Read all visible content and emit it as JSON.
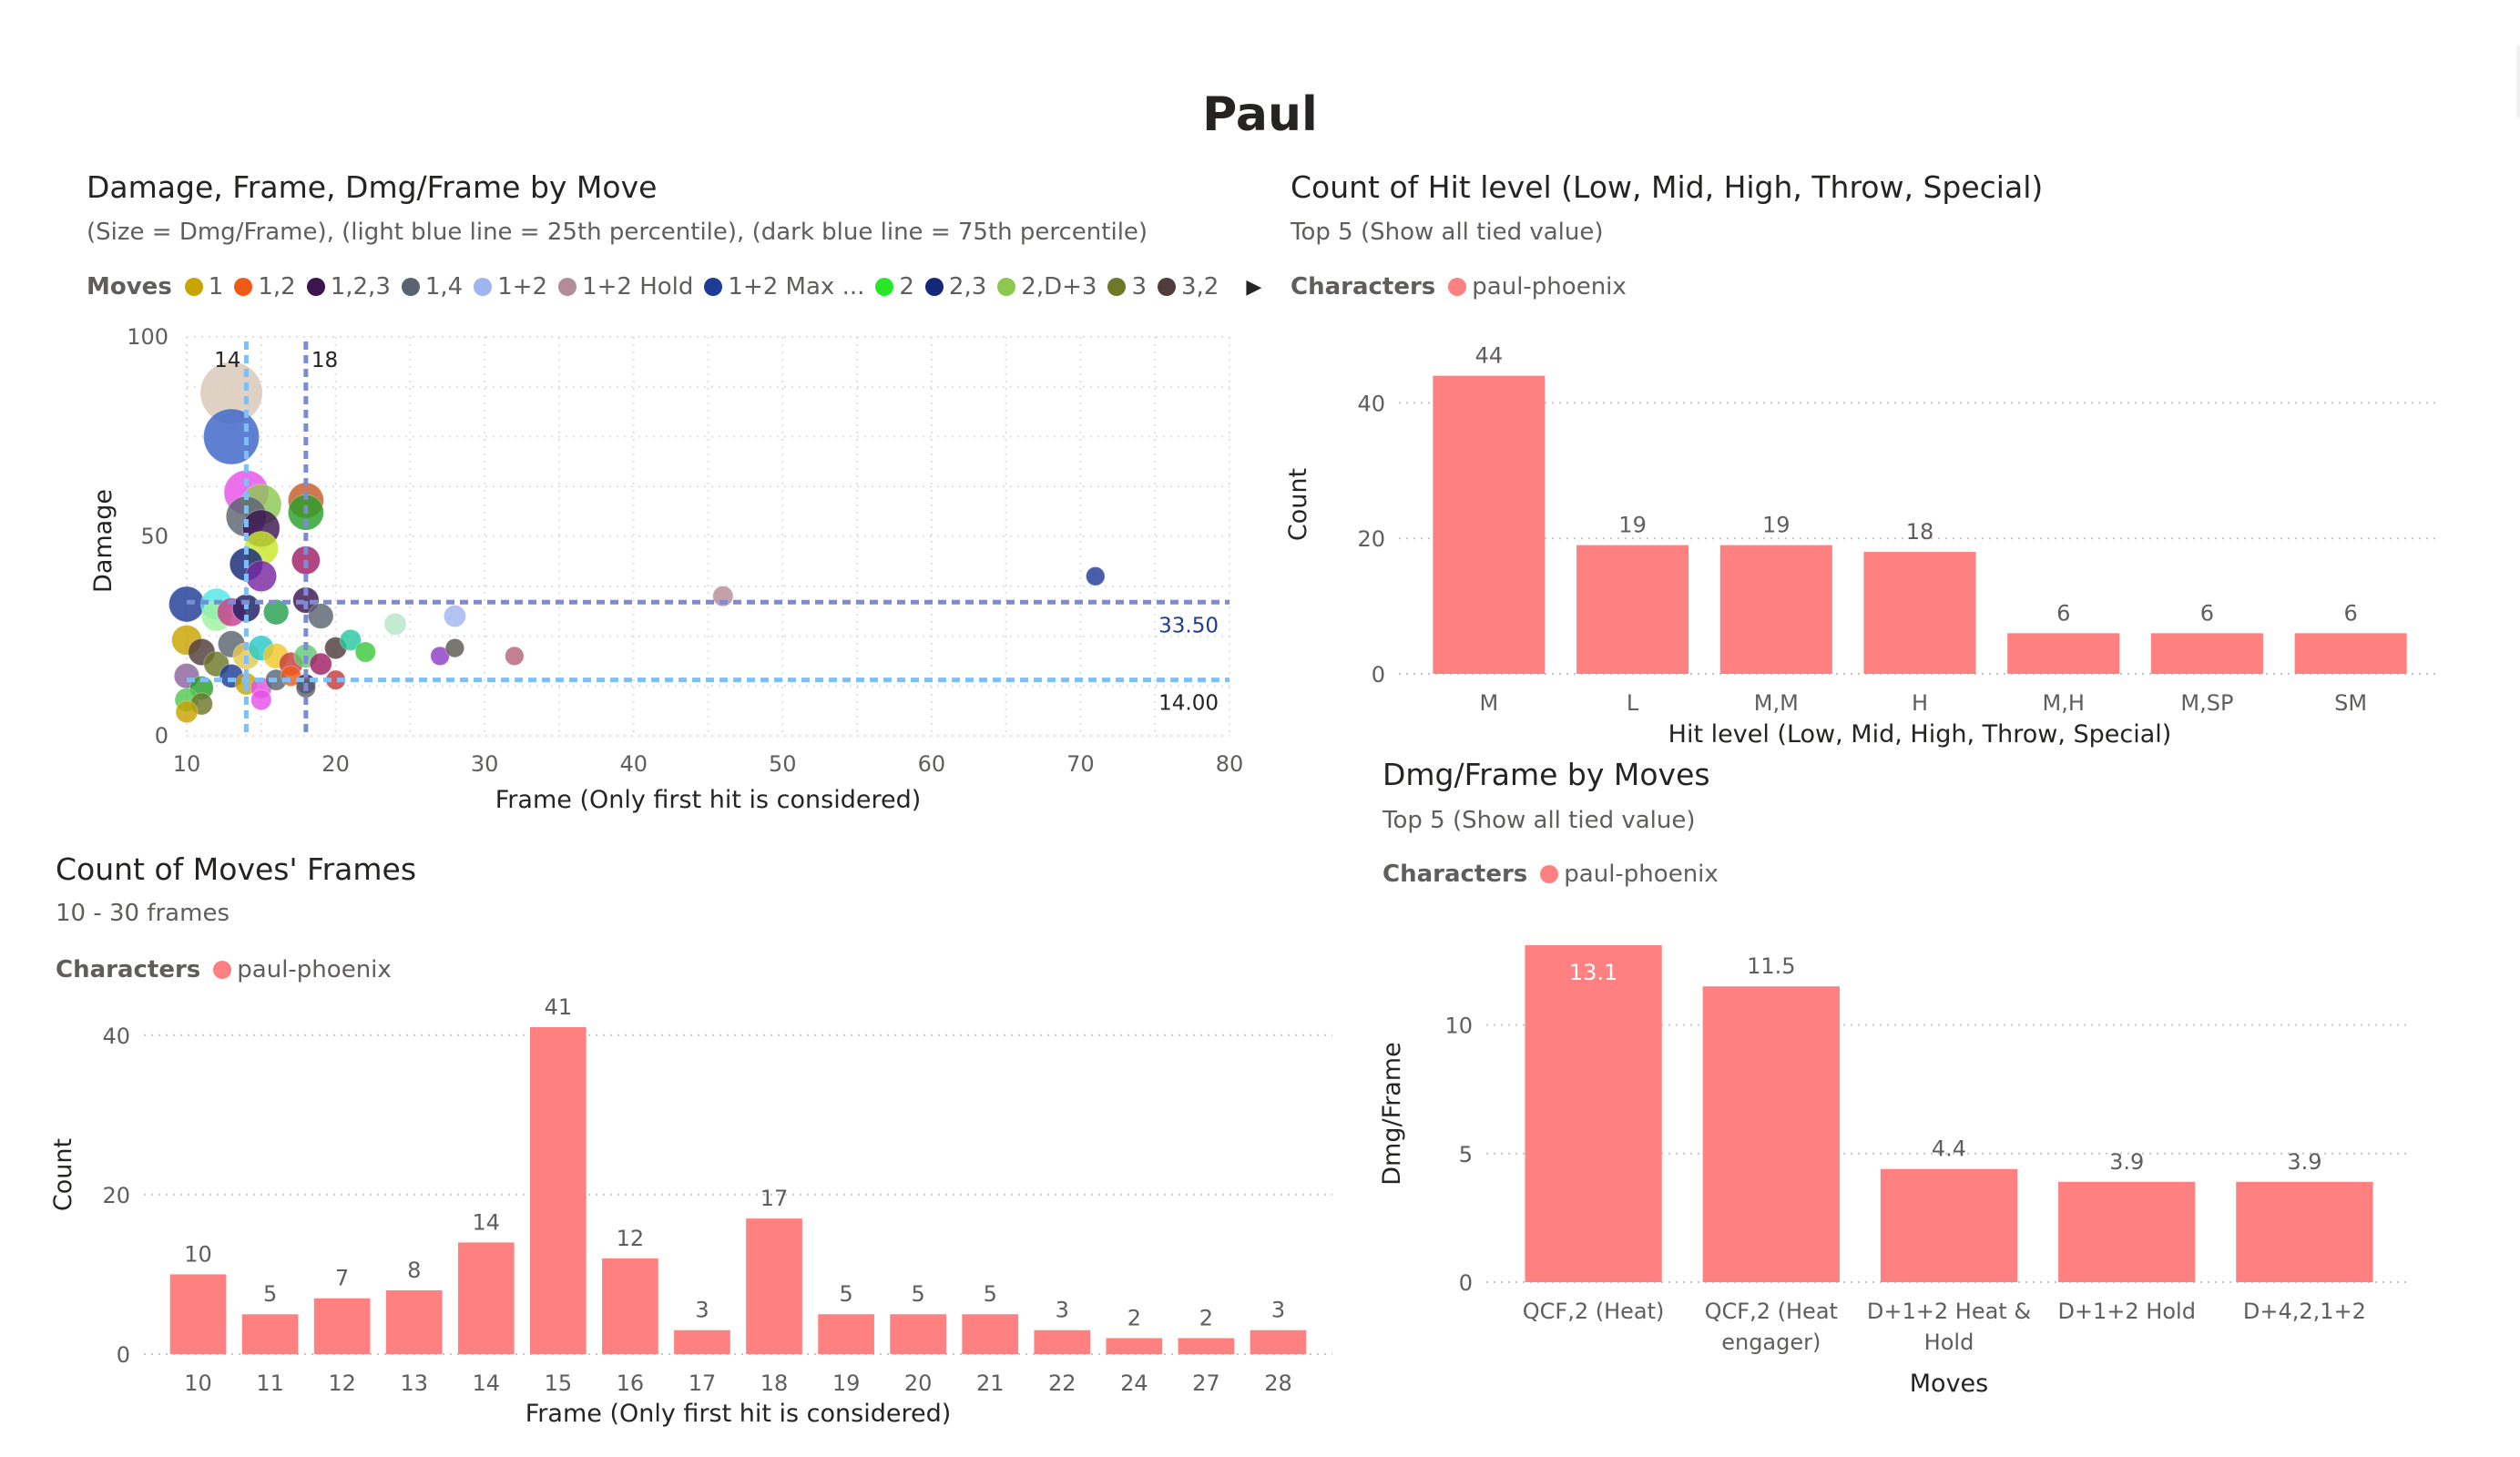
{
  "page": {
    "title": "Paul"
  },
  "scatter": {
    "title": "Damage, Frame, Dmg/Frame by Move",
    "subtitle": "(Size = Dmg/Frame), (light blue line = 25th percentile), (dark blue line = 75th percentile)",
    "legend_title": "Moves",
    "legend": [
      {
        "label": "1",
        "color": "#C8A400"
      },
      {
        "label": "1,2",
        "color": "#F05A19"
      },
      {
        "label": "1,2,3",
        "color": "#3C1450"
      },
      {
        "label": "1,4",
        "color": "#5A6470"
      },
      {
        "label": "1+2",
        "color": "#A0B4F0"
      },
      {
        "label": "1+2 Hold",
        "color": "#B48C96"
      },
      {
        "label": "1+2 Max ...",
        "color": "#1E3C96"
      },
      {
        "label": "2",
        "color": "#28E628"
      },
      {
        "label": "2,3",
        "color": "#142878"
      },
      {
        "label": "2,D+3",
        "color": "#8CC850"
      },
      {
        "label": "3",
        "color": "#6E7828"
      },
      {
        "label": "3,2",
        "color": "#503C3C"
      }
    ],
    "legend_more_icon": "caret-right-icon"
  },
  "hitlevel": {
    "title": "Count of Hit level (Low, Mid, High, Throw, Special)",
    "subtitle": "Top 5 (Show all tied value)",
    "legend_title": "Characters",
    "legend_label": "paul-phoenix",
    "legend_color": "#FF8080"
  },
  "frames": {
    "title": "Count of Moves' Frames",
    "subtitle": "10 - 30 frames",
    "legend_title": "Characters",
    "legend_label": "paul-phoenix",
    "legend_color": "#FF8080"
  },
  "dmgframe": {
    "title": "Dmg/Frame by Moves",
    "subtitle": "Top 5 (Show all tied value)",
    "legend_title": "Characters",
    "legend_label": "paul-phoenix",
    "legend_color": "#FF8080"
  },
  "chart_data": [
    {
      "id": "scatter",
      "type": "scatter",
      "xlabel": "Frame (Only first hit is considered)",
      "ylabel": "Damage",
      "xlim": [
        10,
        80
      ],
      "ylim": [
        0,
        100
      ],
      "xticks": [
        10,
        20,
        30,
        40,
        50,
        60,
        70,
        80
      ],
      "yticks": [
        0,
        50,
        100
      ],
      "grid": true,
      "reference_lines": [
        {
          "axis": "x",
          "value": 14,
          "label": "14",
          "color": "#7FBFF5"
        },
        {
          "axis": "x",
          "value": 18,
          "label": "18",
          "color": "#7A8CD6"
        },
        {
          "axis": "y",
          "value": 33.5,
          "label": "33.50",
          "color": "#7A8CD6"
        },
        {
          "axis": "y",
          "value": 14.0,
          "label": "14.00",
          "color": "#7FBFF5"
        }
      ],
      "points": [
        {
          "x": 13,
          "y": 86,
          "s": 6.6,
          "c": "#D8C8B8"
        },
        {
          "x": 13,
          "y": 75,
          "s": 5.8,
          "c": "#3C64C8"
        },
        {
          "x": 14,
          "y": 61,
          "s": 4.4,
          "c": "#E650E6"
        },
        {
          "x": 15,
          "y": 58,
          "s": 3.9,
          "c": "#8CC850"
        },
        {
          "x": 14,
          "y": 55,
          "s": 3.9,
          "c": "#5A6470"
        },
        {
          "x": 15,
          "y": 52,
          "s": 3.5,
          "c": "#3C1450"
        },
        {
          "x": 18,
          "y": 59,
          "s": 3.3,
          "c": "#C85A28"
        },
        {
          "x": 18,
          "y": 56,
          "s": 3.3,
          "c": "#28A028"
        },
        {
          "x": 15,
          "y": 47,
          "s": 3.1,
          "c": "#C8E628"
        },
        {
          "x": 18,
          "y": 44,
          "s": 2.4,
          "c": "#A01E64"
        },
        {
          "x": 14,
          "y": 43,
          "s": 3.0,
          "c": "#142878"
        },
        {
          "x": 15,
          "y": 40,
          "s": 2.7,
          "c": "#7828A0"
        },
        {
          "x": 10,
          "y": 33,
          "s": 3.3,
          "c": "#1E3C96"
        },
        {
          "x": 12,
          "y": 33,
          "s": 2.8,
          "c": "#50E6E6"
        },
        {
          "x": 12,
          "y": 30,
          "s": 2.6,
          "c": "#A0F0A0"
        },
        {
          "x": 13,
          "y": 31,
          "s": 2.4,
          "c": "#C83C8C"
        },
        {
          "x": 14,
          "y": 32,
          "s": 2.3,
          "c": "#1E1E64"
        },
        {
          "x": 16,
          "y": 31,
          "s": 2.0,
          "c": "#28A050"
        },
        {
          "x": 18,
          "y": 34,
          "s": 2.1,
          "c": "#3C1450"
        },
        {
          "x": 19,
          "y": 30,
          "s": 2.0,
          "c": "#5A6470"
        },
        {
          "x": 24,
          "y": 28,
          "s": 1.6,
          "c": "#B4E6C8"
        },
        {
          "x": 28,
          "y": 30,
          "s": 1.6,
          "c": "#A0B4F0"
        },
        {
          "x": 46,
          "y": 35,
          "s": 1.4,
          "c": "#B48C96"
        },
        {
          "x": 71,
          "y": 40,
          "s": 1.2,
          "c": "#1E3C96"
        },
        {
          "x": 10,
          "y": 24,
          "s": 2.6,
          "c": "#C8A400"
        },
        {
          "x": 11,
          "y": 21,
          "s": 2.2,
          "c": "#503C3C"
        },
        {
          "x": 12,
          "y": 18,
          "s": 2.0,
          "c": "#6E7828"
        },
        {
          "x": 13,
          "y": 23,
          "s": 2.2,
          "c": "#5A6470"
        },
        {
          "x": 14,
          "y": 20,
          "s": 2.2,
          "c": "#E6C850"
        },
        {
          "x": 15,
          "y": 22,
          "s": 2.0,
          "c": "#28C8C8"
        },
        {
          "x": 16,
          "y": 20,
          "s": 2.0,
          "c": "#F0C828"
        },
        {
          "x": 17,
          "y": 18,
          "s": 1.8,
          "c": "#C83C3C"
        },
        {
          "x": 18,
          "y": 20,
          "s": 1.8,
          "c": "#64C878"
        },
        {
          "x": 19,
          "y": 18,
          "s": 1.6,
          "c": "#A01E64"
        },
        {
          "x": 20,
          "y": 22,
          "s": 1.6,
          "c": "#503C3C"
        },
        {
          "x": 21,
          "y": 24,
          "s": 1.5,
          "c": "#28C8A0"
        },
        {
          "x": 22,
          "y": 21,
          "s": 1.4,
          "c": "#3CC83C"
        },
        {
          "x": 27,
          "y": 20,
          "s": 1.2,
          "c": "#8C3CC8"
        },
        {
          "x": 28,
          "y": 22,
          "s": 1.2,
          "c": "#5A5A50"
        },
        {
          "x": 32,
          "y": 20,
          "s": 1.2,
          "c": "#B46478"
        },
        {
          "x": 10,
          "y": 15,
          "s": 2.0,
          "c": "#8C64A0"
        },
        {
          "x": 11,
          "y": 12,
          "s": 1.8,
          "c": "#28A028"
        },
        {
          "x": 13,
          "y": 15,
          "s": 1.8,
          "c": "#1E3C96"
        },
        {
          "x": 14,
          "y": 13,
          "s": 1.6,
          "c": "#C8A400"
        },
        {
          "x": 15,
          "y": 12,
          "s": 1.5,
          "c": "#E650E6"
        },
        {
          "x": 16,
          "y": 14,
          "s": 1.5,
          "c": "#5A6470"
        },
        {
          "x": 17,
          "y": 15,
          "s": 1.4,
          "c": "#F05A19"
        },
        {
          "x": 18,
          "y": 13,
          "s": 1.3,
          "c": "#3C1450"
        },
        {
          "x": 20,
          "y": 14,
          "s": 1.3,
          "c": "#C83C3C"
        },
        {
          "x": 10,
          "y": 9,
          "s": 1.8,
          "c": "#50C850"
        },
        {
          "x": 11,
          "y": 8,
          "s": 1.6,
          "c": "#6E7828"
        },
        {
          "x": 15,
          "y": 9,
          "s": 1.4,
          "c": "#E650E6"
        },
        {
          "x": 18,
          "y": 12,
          "s": 1.3,
          "c": "#5A6470"
        },
        {
          "x": 10,
          "y": 6,
          "s": 1.6,
          "c": "#C8A400"
        }
      ]
    },
    {
      "id": "hitlevel",
      "type": "bar",
      "xlabel": "Hit level (Low, Mid, High, Throw, Special)",
      "ylabel": "Count",
      "categories": [
        "M",
        "L",
        "M,M",
        "H",
        "M,H",
        "M,SP",
        "SM"
      ],
      "values": [
        44,
        19,
        19,
        18,
        6,
        6,
        6
      ],
      "ylim": [
        0,
        50
      ],
      "yticks": [
        0,
        20,
        40
      ],
      "color": "#FF8080"
    },
    {
      "id": "frames",
      "type": "bar",
      "xlabel": "Frame (Only first hit is considered)",
      "ylabel": "Count",
      "categories": [
        "10",
        "11",
        "12",
        "13",
        "14",
        "15",
        "16",
        "17",
        "18",
        "19",
        "20",
        "21",
        "22",
        "24",
        "27",
        "28"
      ],
      "values": [
        10,
        5,
        7,
        8,
        14,
        41,
        12,
        3,
        17,
        5,
        5,
        5,
        3,
        2,
        2,
        3
      ],
      "ylim": [
        0,
        45
      ],
      "yticks": [
        0,
        20,
        40
      ],
      "color": "#FF8080"
    },
    {
      "id": "dmgframe",
      "type": "bar",
      "xlabel": "Moves",
      "ylabel": "Dmg/Frame",
      "categories": [
        [
          "QCF,2 (Heat)"
        ],
        [
          "QCF,2 (Heat",
          "engager)"
        ],
        [
          "D+1+2 Heat &",
          "Hold"
        ],
        [
          "D+1+2 Hold"
        ],
        [
          "D+4,2,1+2"
        ]
      ],
      "values": [
        13.1,
        11.5,
        4.4,
        3.9,
        3.9
      ],
      "value_labels": [
        "13.1",
        "11.5",
        "4.4",
        "3.9",
        "3.9"
      ],
      "ylim": [
        0,
        13.1
      ],
      "yticks": [
        0,
        5,
        10
      ],
      "color": "#FF8080"
    }
  ]
}
